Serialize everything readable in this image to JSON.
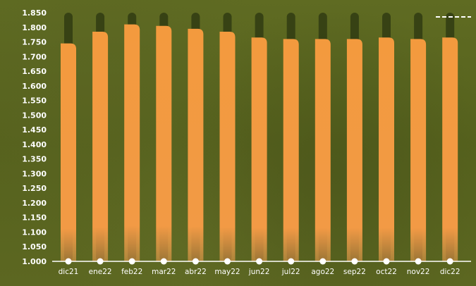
{
  "chart_data": {
    "type": "bar",
    "categories": [
      "dic21",
      "ene22",
      "feb22",
      "mar22",
      "abr22",
      "may22",
      "jun22",
      "jul22",
      "ago22",
      "sep22",
      "oct22",
      "nov22",
      "dic22"
    ],
    "values": [
      1.745,
      1.785,
      1.81,
      1.805,
      1.795,
      1.785,
      1.765,
      1.76,
      1.76,
      1.76,
      1.765,
      1.76,
      1.765
    ],
    "ylim": [
      1.0,
      1.85
    ],
    "yticks": [
      "1.000",
      "1.050",
      "1.100",
      "1.150",
      "1.200",
      "1.250",
      "1.300",
      "1.350",
      "1.400",
      "1.450",
      "1.500",
      "1.550",
      "1.600",
      "1.650",
      "1.700",
      "1.750",
      "1.800",
      "1.850"
    ],
    "ytick_values": [
      1.0,
      1.05,
      1.1,
      1.15,
      1.2,
      1.25,
      1.3,
      1.35,
      1.4,
      1.45,
      1.5,
      1.55,
      1.6,
      1.65,
      1.7,
      1.75,
      1.8,
      1.85
    ],
    "grid": false,
    "legend": "top-right",
    "colors": {
      "bar_top": "#f39a3e",
      "bar_bottom": "#f0a050",
      "track": "#2b3510",
      "axis": "#ffffff",
      "text": "#ffffff",
      "marker": "#ffffff"
    }
  }
}
